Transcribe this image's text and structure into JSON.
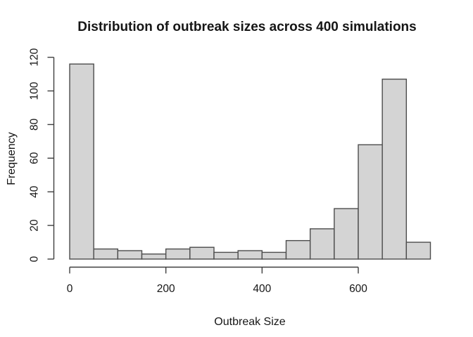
{
  "figure": {
    "background": "#ffffff"
  },
  "chart_data": {
    "type": "bar",
    "subtype": "histogram",
    "title": "Distribution of outbreak sizes across 400 simulations",
    "xlabel": "Outbreak Size",
    "ylabel": "Frequency",
    "total_count": 400,
    "bin_width": 50,
    "bin_edges": [
      0,
      50,
      100,
      150,
      200,
      250,
      300,
      350,
      400,
      450,
      500,
      550,
      600,
      650,
      700,
      750
    ],
    "counts": [
      116,
      6,
      5,
      3,
      6,
      7,
      4,
      5,
      4,
      11,
      18,
      30,
      68,
      107,
      10
    ],
    "x_ticks": [
      0,
      200,
      400,
      600
    ],
    "y_ticks": [
      0,
      20,
      40,
      60,
      80,
      100,
      120
    ],
    "xlim": [
      0,
      750
    ],
    "ylim": [
      0,
      120
    ],
    "grid": false,
    "legend": "none",
    "colors": {
      "bar_fill": "#d4d4d4",
      "bar_border": "#4d4d4d",
      "axis": "#3f3f3f",
      "text": "#161616",
      "background": "#ffffff"
    }
  }
}
